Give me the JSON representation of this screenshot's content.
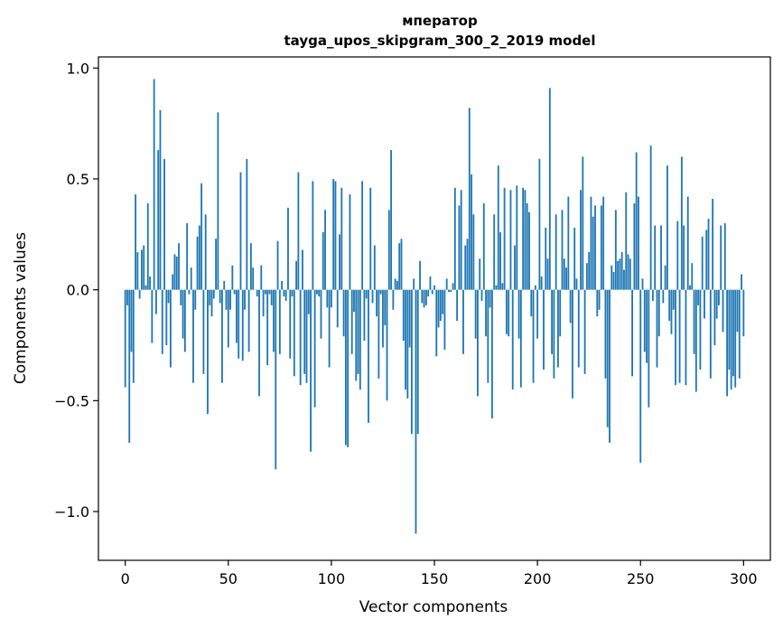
{
  "chart_data": {
    "type": "bar",
    "title_line1": "мператор",
    "title_line2": "tayga_upos_skipgram_300_2_2019 model",
    "xlabel": "Vector components",
    "ylabel": "Components values",
    "xlim": [
      -13,
      313
    ],
    "ylim": [
      -1.22,
      1.05
    ],
    "xticks": [
      0,
      50,
      100,
      150,
      200,
      250,
      300
    ],
    "xtick_labels": [
      "0",
      "50",
      "100",
      "150",
      "200",
      "250",
      "300"
    ],
    "yticks": [
      -1.0,
      -0.5,
      0.0,
      0.5,
      1.0
    ],
    "ytick_labels": [
      "−1.0",
      "−0.5",
      "0.0",
      "0.5",
      "1.0"
    ],
    "bar_color": "#1f77b4",
    "values": [
      -0.44,
      -0.07,
      -0.69,
      -0.28,
      -0.42,
      0.43,
      0.17,
      -0.04,
      0.18,
      0.2,
      0.02,
      0.39,
      0.06,
      -0.24,
      0.95,
      -0.11,
      0.63,
      0.81,
      -0.29,
      0.59,
      -0.25,
      -0.06,
      -0.35,
      0.07,
      0.16,
      0.15,
      0.21,
      -0.07,
      -0.22,
      -0.28,
      0.3,
      -0.02,
      0.1,
      -0.42,
      -0.09,
      0.24,
      0.29,
      0.48,
      -0.38,
      0.34,
      -0.56,
      -0.07,
      -0.12,
      -0.04,
      0.23,
      0.8,
      -0.06,
      -0.42,
      0.04,
      -0.09,
      -0.26,
      -0.09,
      0.11,
      -0.02,
      -0.24,
      -0.31,
      0.53,
      -0.32,
      -0.09,
      0.59,
      -0.28,
      0.21,
      0.1,
      0.0,
      -0.03,
      -0.48,
      0.11,
      -0.12,
      -0.02,
      -0.34,
      -0.02,
      -0.07,
      -0.28,
      -0.81,
      0.22,
      -0.29,
      0.04,
      -0.03,
      -0.05,
      0.37,
      -0.31,
      -0.03,
      -0.39,
      0.13,
      0.53,
      -0.43,
      0.18,
      -0.38,
      -0.42,
      -0.11,
      -0.73,
      0.49,
      -0.53,
      -0.02,
      -0.03,
      -0.22,
      0.26,
      0.36,
      -0.08,
      -0.35,
      -0.08,
      0.5,
      0.49,
      -0.17,
      0.25,
      0.46,
      -0.21,
      -0.7,
      -0.71,
      0.43,
      -0.29,
      -0.1,
      -0.41,
      -0.38,
      -0.45,
      0.49,
      -0.23,
      -0.04,
      -0.6,
      0.46,
      -0.06,
      0.2,
      -0.12,
      -0.4,
      -0.02,
      -0.26,
      -0.16,
      -0.5,
      0.36,
      0.63,
      -0.09,
      0.05,
      0.04,
      0.21,
      0.23,
      -0.23,
      -0.45,
      -0.49,
      -0.26,
      -0.65,
      0.05,
      -1.1,
      -0.65,
      0.13,
      -0.06,
      -0.08,
      -0.07,
      -0.03,
      0.06,
      -0.02,
      0.02,
      -0.3,
      -0.17,
      -0.14,
      -0.11,
      -0.27,
      0.05,
      -0.01,
      -0.01,
      0.03,
      0.46,
      -0.14,
      0.38,
      0.45,
      -0.29,
      0.2,
      0.23,
      0.82,
      0.52,
      0.34,
      -0.22,
      -0.48,
      0.14,
      -0.05,
      0.39,
      -0.21,
      -0.42,
      -0.08,
      -0.58,
      0.34,
      0.02,
      0.56,
      0.26,
      0.03,
      0.46,
      -0.2,
      -0.21,
      0.45,
      -0.45,
      0.2,
      0.47,
      -0.22,
      -0.44,
      0.46,
      0.45,
      0.39,
      0.35,
      -0.12,
      -0.42,
      0.02,
      -0.22,
      0.59,
      0.06,
      -0.36,
      0.28,
      0.14,
      0.91,
      -0.29,
      -0.4,
      0.34,
      -0.35,
      -0.21,
      0.36,
      0.14,
      0.1,
      0.42,
      -0.15,
      -0.49,
      0.28,
      0.05,
      -0.35,
      0.45,
      0.6,
      -0.38,
      0.12,
      0.17,
      0.42,
      0.33,
      0.38,
      -0.12,
      -0.09,
      0.38,
      0.42,
      -0.4,
      -0.62,
      -0.69,
      0.11,
      0.08,
      0.36,
      0.13,
      0.14,
      0.17,
      0.09,
      0.44,
      0.16,
      0.14,
      -0.39,
      0.39,
      0.62,
      0.42,
      -0.78,
      0.05,
      -0.28,
      -0.33,
      -0.53,
      0.65,
      -0.05,
      0.29,
      -0.35,
      -0.21,
      0.29,
      -0.06,
      0.11,
      0.56,
      -0.14,
      -0.2,
      -0.09,
      -0.43,
      0.31,
      -0.42,
      0.6,
      0.29,
      -0.43,
      0.42,
      0.02,
      0.12,
      -0.29,
      -0.46,
      -0.07,
      -0.36,
      0.24,
      -0.13,
      0.27,
      0.32,
      -0.4,
      0.41,
      -0.25,
      -0.13,
      -0.07,
      0.29,
      -0.19,
      0.3,
      -0.48,
      -0.36,
      -0.45,
      -0.39,
      -0.44,
      -0.19,
      -0.4,
      0.07,
      -0.21
    ]
  }
}
